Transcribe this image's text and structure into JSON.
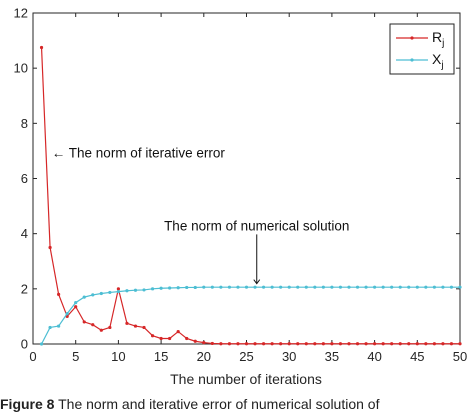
{
  "chart_data": {
    "type": "line",
    "title": "",
    "xlabel": "The number of iterations",
    "ylabel": "",
    "xlim": [
      0,
      50
    ],
    "ylim": [
      0,
      12
    ],
    "xticks": [
      0,
      5,
      10,
      15,
      20,
      25,
      30,
      35,
      40,
      45,
      50
    ],
    "yticks": [
      0,
      2,
      4,
      6,
      8,
      10,
      12
    ],
    "grid": false,
    "legend_position": "top-right",
    "x": [
      1,
      2,
      3,
      4,
      5,
      6,
      7,
      8,
      9,
      10,
      11,
      12,
      13,
      14,
      15,
      16,
      17,
      18,
      19,
      20,
      21,
      22,
      23,
      24,
      25,
      26,
      27,
      28,
      29,
      30,
      31,
      32,
      33,
      34,
      35,
      36,
      37,
      38,
      39,
      40,
      41,
      42,
      43,
      44,
      45,
      46,
      47,
      48,
      49,
      50
    ],
    "series": [
      {
        "name": "R_j",
        "label_main": "R",
        "label_sub": "j",
        "color": "#d62728",
        "values": [
          10.75,
          3.5,
          1.8,
          1.0,
          1.35,
          0.8,
          0.7,
          0.5,
          0.6,
          2.0,
          0.75,
          0.65,
          0.6,
          0.3,
          0.2,
          0.2,
          0.45,
          0.2,
          0.1,
          0.05,
          0.02,
          0.01,
          0.01,
          0.01,
          0.01,
          0.01,
          0.01,
          0.01,
          0.01,
          0.01,
          0.01,
          0.01,
          0.01,
          0.01,
          0.01,
          0.01,
          0.01,
          0.01,
          0.01,
          0.01,
          0.01,
          0.01,
          0.01,
          0.01,
          0.01,
          0.01,
          0.01,
          0.01,
          0.01,
          0.01
        ]
      },
      {
        "name": "X_j",
        "label_main": "X",
        "label_sub": "j",
        "color": "#4dbed3",
        "values": [
          0.0,
          0.6,
          0.65,
          1.1,
          1.5,
          1.7,
          1.78,
          1.83,
          1.87,
          1.9,
          1.93,
          1.95,
          1.96,
          2.0,
          2.02,
          2.03,
          2.04,
          2.05,
          2.05,
          2.06,
          2.06,
          2.06,
          2.06,
          2.06,
          2.06,
          2.06,
          2.06,
          2.06,
          2.06,
          2.06,
          2.06,
          2.06,
          2.06,
          2.06,
          2.06,
          2.06,
          2.06,
          2.06,
          2.06,
          2.06,
          2.06,
          2.06,
          2.06,
          2.06,
          2.06,
          2.06,
          2.06,
          2.06,
          2.06,
          2.06
        ]
      }
    ],
    "annotations": [
      {
        "text": "← The norm of iterative error",
        "x": 2.2,
        "y": 6.95
      },
      {
        "text": "The norm of numerical solution",
        "x": 26.2,
        "y": 4.3,
        "arrow_to": [
          26.2,
          2.08
        ]
      }
    ]
  },
  "caption": {
    "label": "Figure 8",
    "text": "The norm and iterative error of numerical solution of"
  }
}
